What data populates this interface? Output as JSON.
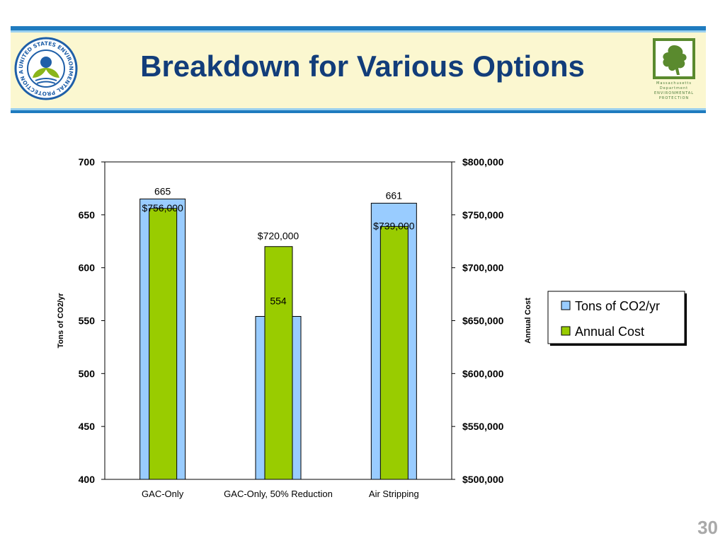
{
  "slide": {
    "title": "Breakdown for Various Options",
    "page_number": "30"
  },
  "logos": {
    "epa": {
      "text": "UNITED STATES ENVIRONMENTAL PROTECTION AGENCY"
    },
    "massachusetts": {
      "lines": [
        "Massachusetts",
        "Department",
        "ENVIRONMENTAL",
        "PROTECTION"
      ]
    }
  },
  "colors": {
    "header_bg": "#fbf7d0",
    "header_border": "#1f7bbf",
    "title": "#123d7a",
    "tons_series": "#99ccff",
    "cost_series": "#99cc00",
    "page_number": "#a9a9a9"
  },
  "chart_data": {
    "type": "bar",
    "categories": [
      "GAC-Only",
      "GAC-Only, 50% Reduction",
      "Air Stripping"
    ],
    "series": [
      {
        "name": "Tons of CO2/yr",
        "axis": "left",
        "values": [
          665,
          554,
          661
        ],
        "labels": [
          "665",
          "554",
          "661"
        ]
      },
      {
        "name": "Annual Cost",
        "axis": "right",
        "values": [
          756000,
          720000,
          739000
        ],
        "labels": [
          "$756,000",
          "$720,000",
          "$739,000"
        ]
      }
    ],
    "ylabel_left": "Tons of CO2/yr",
    "ylabel_right": "Annual Cost",
    "ylim_left": [
      400,
      700
    ],
    "ylim_right": [
      500000,
      800000
    ],
    "yticks_left": [
      "700",
      "650",
      "600",
      "550",
      "500",
      "450",
      "400"
    ],
    "yticks_right": [
      "$800,000",
      "$750,000",
      "$700,000",
      "$650,000",
      "$600,000",
      "$550,000",
      "$500,000"
    ],
    "grid": false,
    "legend_position": "right"
  }
}
